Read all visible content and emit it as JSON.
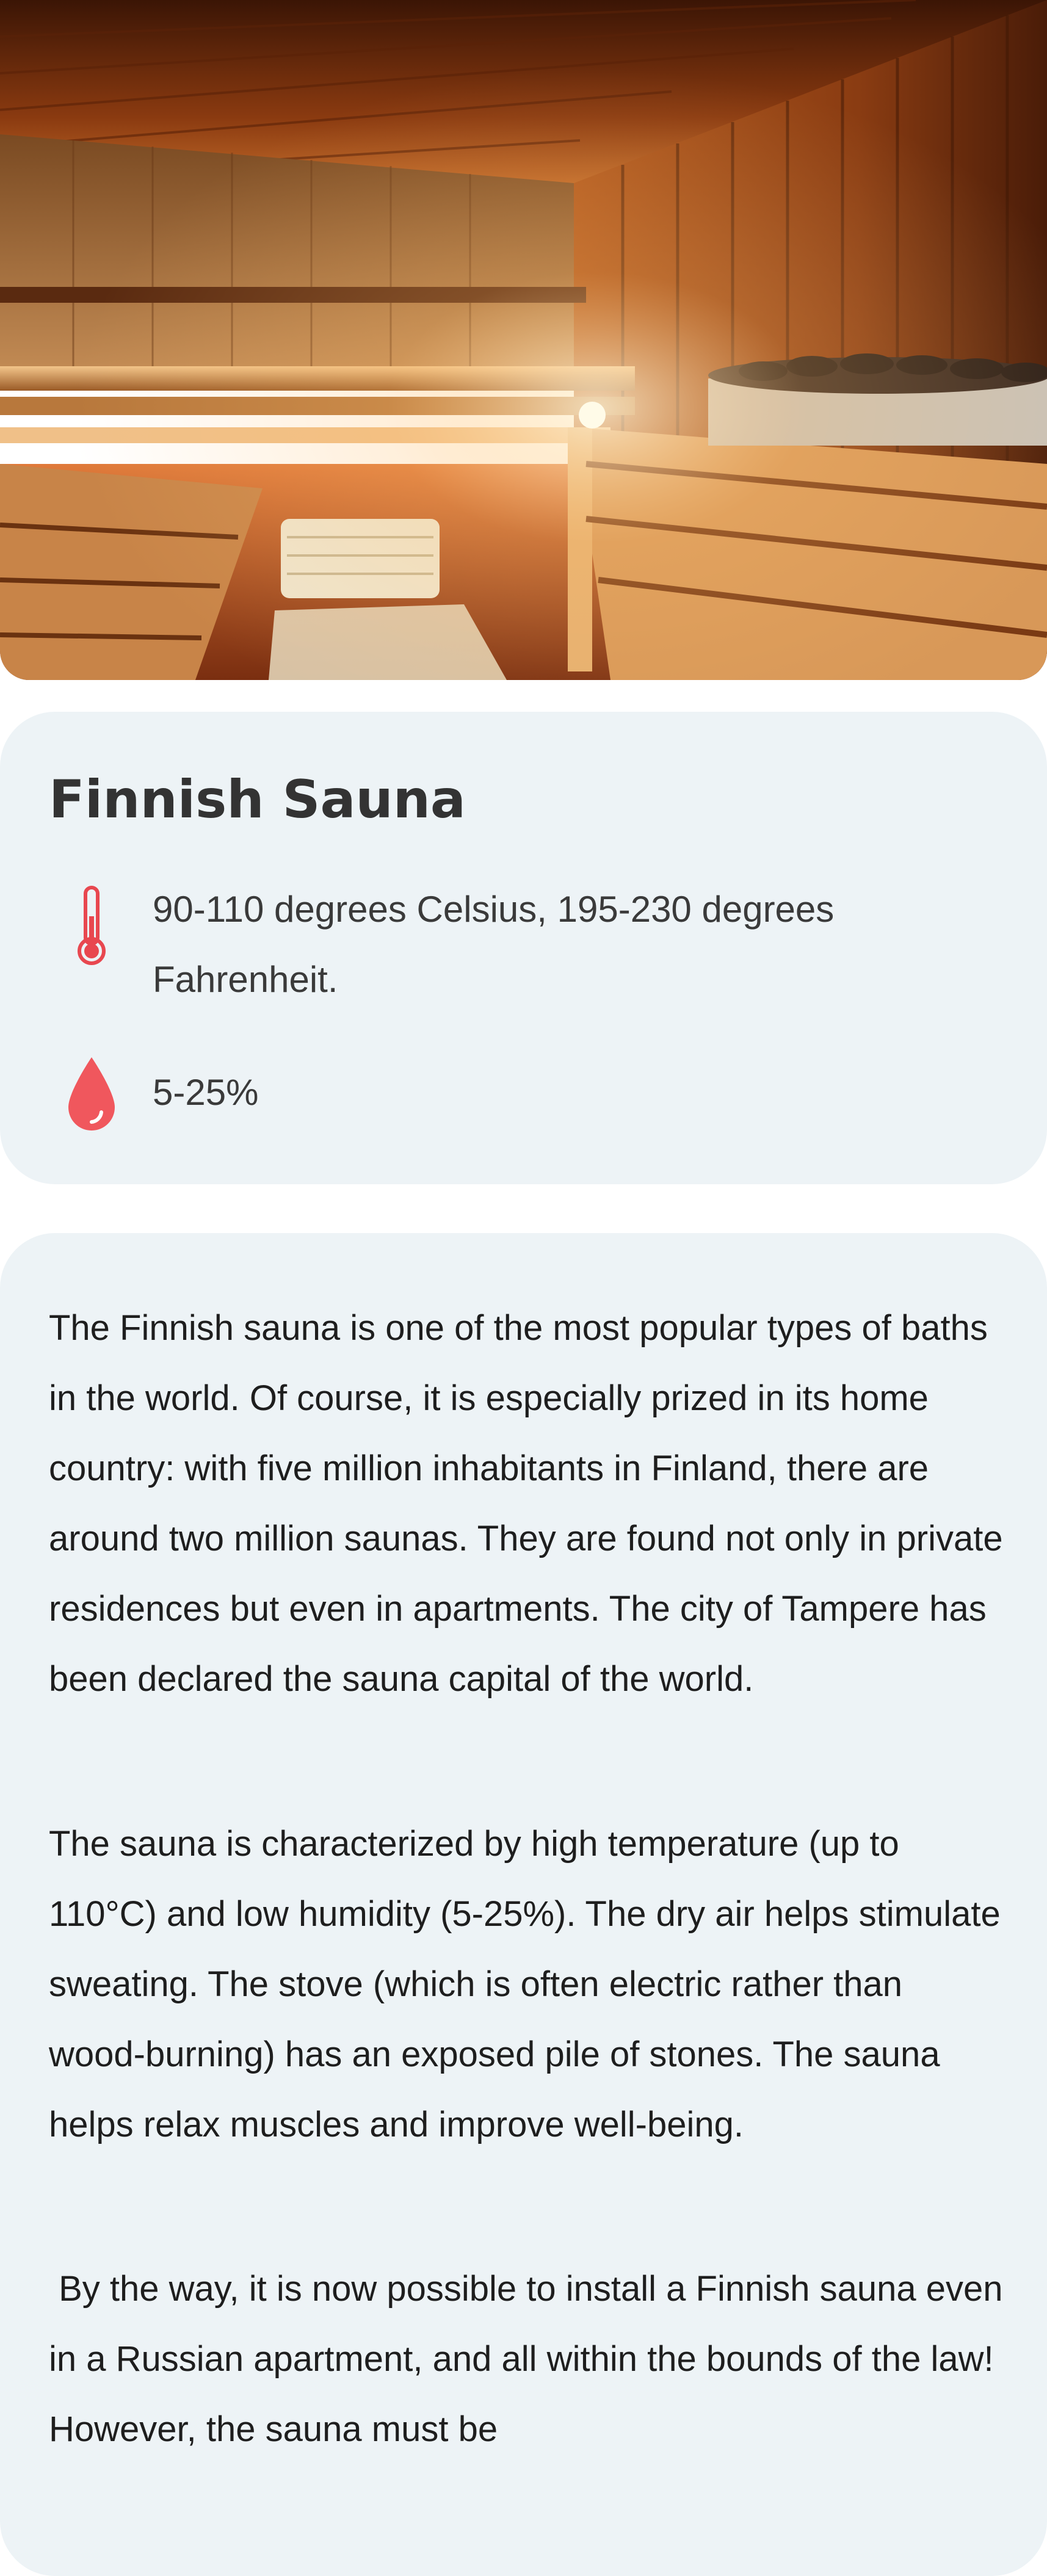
{
  "hero": {
    "image": "finnish-sauna-interior-photo"
  },
  "info": {
    "title": "Finnish Sauna",
    "temperature": {
      "icon": "thermometer-icon",
      "text": "90-110 degrees Celsius, 195-230 degrees Fahrenheit."
    },
    "humidity": {
      "icon": "water-drop-icon",
      "text": "5-25%"
    },
    "icon_color": "#e8474f"
  },
  "description": {
    "paragraphs": [
      "The Finnish sauna is one of the most popular types of baths in the world. Of course, it is especially prized in its home country: with five million inhabitants in Finland, there are around two million saunas. They are found not only in private residences but even in apartments. The city of Tampere has been declared the sauna capital of the world.",
      "The sauna is characterized by high temperature (up to 110°C) and low humidity (5-25%). The dry air helps stimulate sweating. The stove (which is often electric rather than wood-burning) has an exposed pile of stones. The sauna helps relax muscles and improve well-being.",
      " By the way, it is now possible to install a Finnish sauna even in a Russian apartment, and all within the bounds of the law! However, the sauna must be"
    ]
  }
}
